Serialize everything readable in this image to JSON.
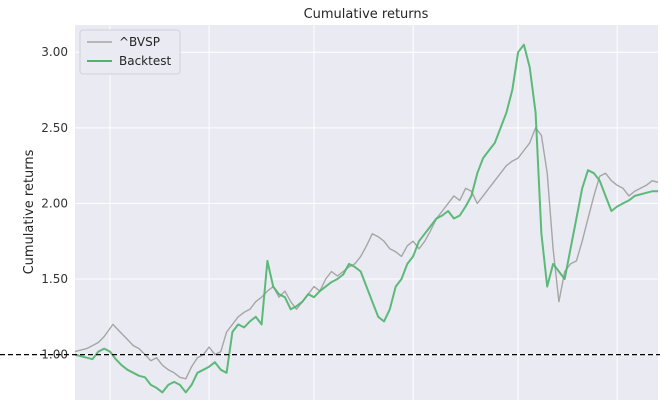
{
  "chart_data": {
    "type": "line",
    "title": "Cumulative returns",
    "xlabel": "",
    "ylabel": "Cumulative returns",
    "ylim": [
      0.7,
      3.18
    ],
    "yticks": [
      1.0,
      1.5,
      2.0,
      2.5,
      3.0
    ],
    "ytick_labels": [
      "1.00",
      "1.50",
      "2.00",
      "2.50",
      "3.00"
    ],
    "x_range": [
      0,
      100
    ],
    "x_grid_positions": [
      6,
      23,
      41,
      58,
      76,
      93
    ],
    "grid": true,
    "legend_position": "top-left",
    "reference_line": {
      "y": 1.0,
      "style": "dashed",
      "color": "#000000"
    },
    "series": [
      {
        "name": "^BVSP",
        "color": "#a6a6a6",
        "x": [
          0,
          2,
          4,
          5,
          6.5,
          8,
          9,
          10,
          11,
          12,
          13,
          14,
          15,
          16,
          17,
          18,
          19,
          20,
          21,
          22,
          23,
          24,
          25,
          26,
          27,
          28,
          29,
          30,
          31,
          32,
          33,
          34,
          35,
          36,
          37,
          38,
          39,
          40,
          41,
          42,
          43,
          44,
          45,
          46,
          47,
          48,
          49,
          50,
          51,
          52,
          53,
          54,
          55,
          56,
          57,
          58,
          59,
          60,
          61,
          62,
          63,
          64,
          65,
          66,
          67,
          68,
          69,
          70,
          71,
          72,
          73,
          74,
          75,
          76,
          77,
          78,
          79,
          80,
          81,
          82,
          83,
          84,
          85,
          86,
          87,
          88,
          89,
          90,
          91,
          92,
          93,
          94,
          95,
          96,
          97,
          98,
          99,
          100
        ],
        "values": [
          1.02,
          1.04,
          1.08,
          1.12,
          1.2,
          1.14,
          1.1,
          1.06,
          1.04,
          1.0,
          0.96,
          0.98,
          0.93,
          0.9,
          0.88,
          0.85,
          0.84,
          0.92,
          0.98,
          1.0,
          1.05,
          1.0,
          1.02,
          1.15,
          1.2,
          1.25,
          1.28,
          1.3,
          1.35,
          1.38,
          1.42,
          1.45,
          1.38,
          1.42,
          1.35,
          1.3,
          1.35,
          1.4,
          1.45,
          1.42,
          1.5,
          1.55,
          1.52,
          1.55,
          1.58,
          1.6,
          1.65,
          1.72,
          1.8,
          1.78,
          1.75,
          1.7,
          1.68,
          1.65,
          1.72,
          1.75,
          1.7,
          1.75,
          1.82,
          1.9,
          1.95,
          2.0,
          2.05,
          2.02,
          2.1,
          2.08,
          2.0,
          2.05,
          2.1,
          2.15,
          2.2,
          2.25,
          2.28,
          2.3,
          2.35,
          2.4,
          2.5,
          2.45,
          2.2,
          1.7,
          1.35,
          1.55,
          1.6,
          1.62,
          1.75,
          1.9,
          2.05,
          2.18,
          2.2,
          2.15,
          2.12,
          2.1,
          2.05,
          2.08,
          2.1,
          2.12,
          2.15,
          2.14
        ]
      },
      {
        "name": "Backtest",
        "color": "#4cb56a",
        "x": [
          0,
          2,
          3,
          4,
          5,
          6,
          7,
          8,
          9,
          10,
          11,
          12,
          13,
          14,
          15,
          16,
          17,
          18,
          19,
          20,
          21,
          22,
          23,
          24,
          25,
          26,
          27,
          28,
          29,
          30,
          31,
          32,
          33,
          34,
          35,
          36,
          37,
          38,
          39,
          40,
          41,
          42,
          43,
          44,
          45,
          46,
          47,
          48,
          49,
          50,
          51,
          52,
          53,
          54,
          55,
          56,
          57,
          58,
          59,
          60,
          61,
          62,
          63,
          64,
          65,
          66,
          67,
          68,
          69,
          70,
          71,
          72,
          73,
          74,
          75,
          76,
          77,
          78,
          79,
          80,
          81,
          82,
          83,
          84,
          85,
          86,
          87,
          88,
          89,
          90,
          91,
          92,
          93,
          94,
          95,
          96,
          97,
          98,
          99,
          100
        ],
        "values": [
          1.0,
          0.98,
          0.97,
          1.02,
          1.04,
          1.02,
          0.97,
          0.93,
          0.9,
          0.88,
          0.86,
          0.85,
          0.8,
          0.78,
          0.75,
          0.8,
          0.82,
          0.8,
          0.75,
          0.8,
          0.88,
          0.9,
          0.92,
          0.95,
          0.9,
          0.88,
          1.15,
          1.2,
          1.18,
          1.22,
          1.25,
          1.2,
          1.62,
          1.45,
          1.4,
          1.38,
          1.3,
          1.32,
          1.35,
          1.4,
          1.38,
          1.42,
          1.45,
          1.48,
          1.5,
          1.53,
          1.6,
          1.58,
          1.55,
          1.45,
          1.35,
          1.25,
          1.22,
          1.3,
          1.45,
          1.5,
          1.6,
          1.65,
          1.75,
          1.8,
          1.85,
          1.9,
          1.92,
          1.95,
          1.9,
          1.92,
          1.98,
          2.05,
          2.2,
          2.3,
          2.35,
          2.4,
          2.5,
          2.6,
          2.75,
          3.0,
          3.05,
          2.9,
          2.6,
          1.8,
          1.45,
          1.6,
          1.55,
          1.5,
          1.7,
          1.9,
          2.1,
          2.22,
          2.2,
          2.15,
          2.05,
          1.95,
          1.98,
          2.0,
          2.02,
          2.05,
          2.06,
          2.07,
          2.08,
          2.08
        ]
      }
    ]
  }
}
